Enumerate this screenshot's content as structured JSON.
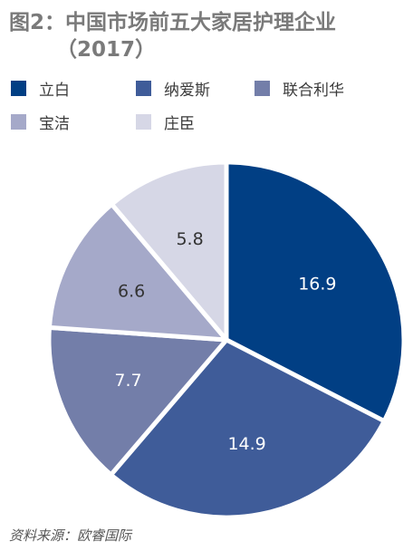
{
  "title": {
    "line1": "图2：中国市场前五大家居护理企业",
    "line2": "（2017）"
  },
  "source": "资料来源：欧睿国际",
  "chart_data": {
    "type": "pie",
    "title": "图2：中国市场前五大家居护理企业（2017）",
    "categories": [
      "立白",
      "纳爱斯",
      "联合利华",
      "宝洁",
      "庄臣"
    ],
    "values": [
      16.9,
      14.9,
      7.7,
      6.6,
      5.8
    ],
    "colors": [
      "#013f84",
      "#3f5c99",
      "#737ea9",
      "#a5a9c9",
      "#d6d7e6"
    ],
    "label_colors": [
      "#ffffff",
      "#ffffff",
      "#ffffff",
      "#333333",
      "#333333"
    ],
    "legend": [
      {
        "label": "立白",
        "color": "#013f84"
      },
      {
        "label": "纳爱斯",
        "color": "#3f5c99"
      },
      {
        "label": "联合利华",
        "color": "#737ea9"
      },
      {
        "label": "宝洁",
        "color": "#a5a9c9"
      },
      {
        "label": "庄臣",
        "color": "#d6d7e6"
      }
    ],
    "legend_position": "top-left",
    "start_angle_deg": 0,
    "direction": "clockwise"
  }
}
